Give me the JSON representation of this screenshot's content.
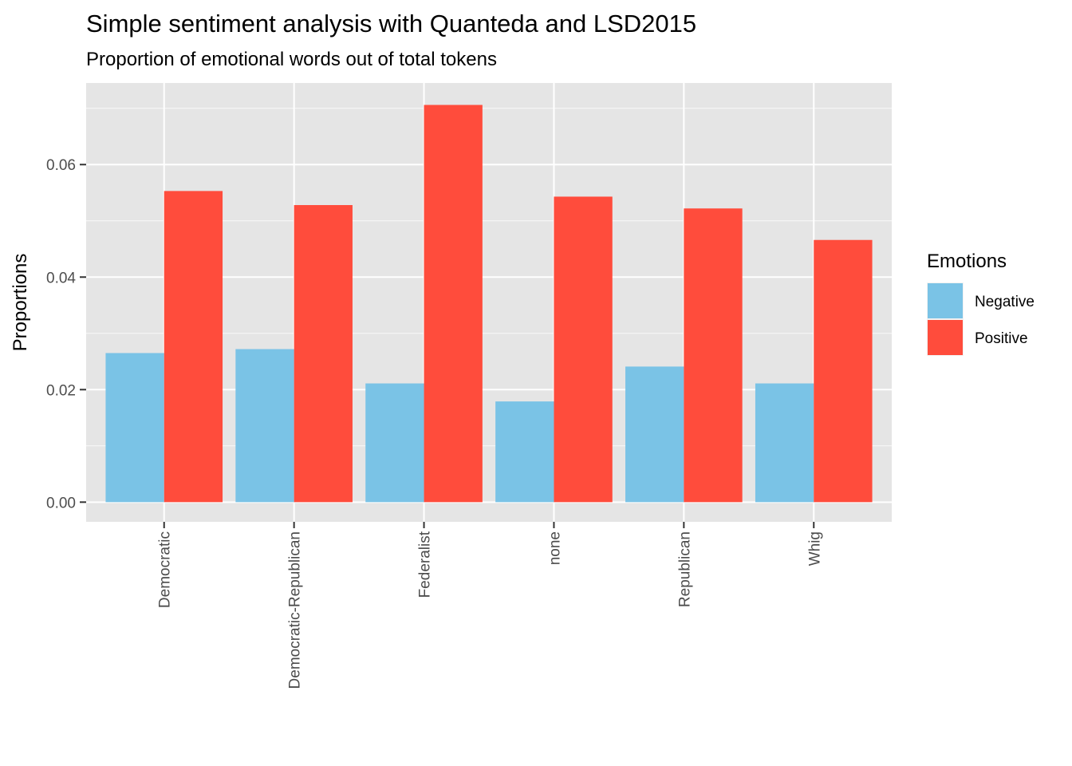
{
  "chart_data": {
    "type": "bar",
    "title": "Simple sentiment analysis with Quanteda and LSD2015",
    "subtitle": "Proportion of emotional words out of total tokens",
    "xlabel": "",
    "ylabel": "Proportions",
    "categories": [
      "Democratic",
      "Democratic-Republican",
      "Federalist",
      "none",
      "Republican",
      "Whig"
    ],
    "series": [
      {
        "name": "Negative",
        "color": "#7AC3E6",
        "values": [
          0.0265,
          0.0272,
          0.0211,
          0.0179,
          0.0241,
          0.0211
        ]
      },
      {
        "name": "Positive",
        "color": "#FF4C3C",
        "values": [
          0.0553,
          0.0528,
          0.0706,
          0.0543,
          0.0522,
          0.0466
        ]
      }
    ],
    "ylim": [
      -0.0035,
      0.0745
    ],
    "yticks": [
      0,
      0.02,
      0.04,
      0.06
    ],
    "ytick_labels": [
      "0.00",
      "0.02",
      "0.04",
      "0.06"
    ],
    "legend": {
      "title": "Emotions",
      "placement": "right"
    },
    "grid": true,
    "panel_background": "#E5E5E5",
    "x_tick_rotation": "vertical"
  }
}
